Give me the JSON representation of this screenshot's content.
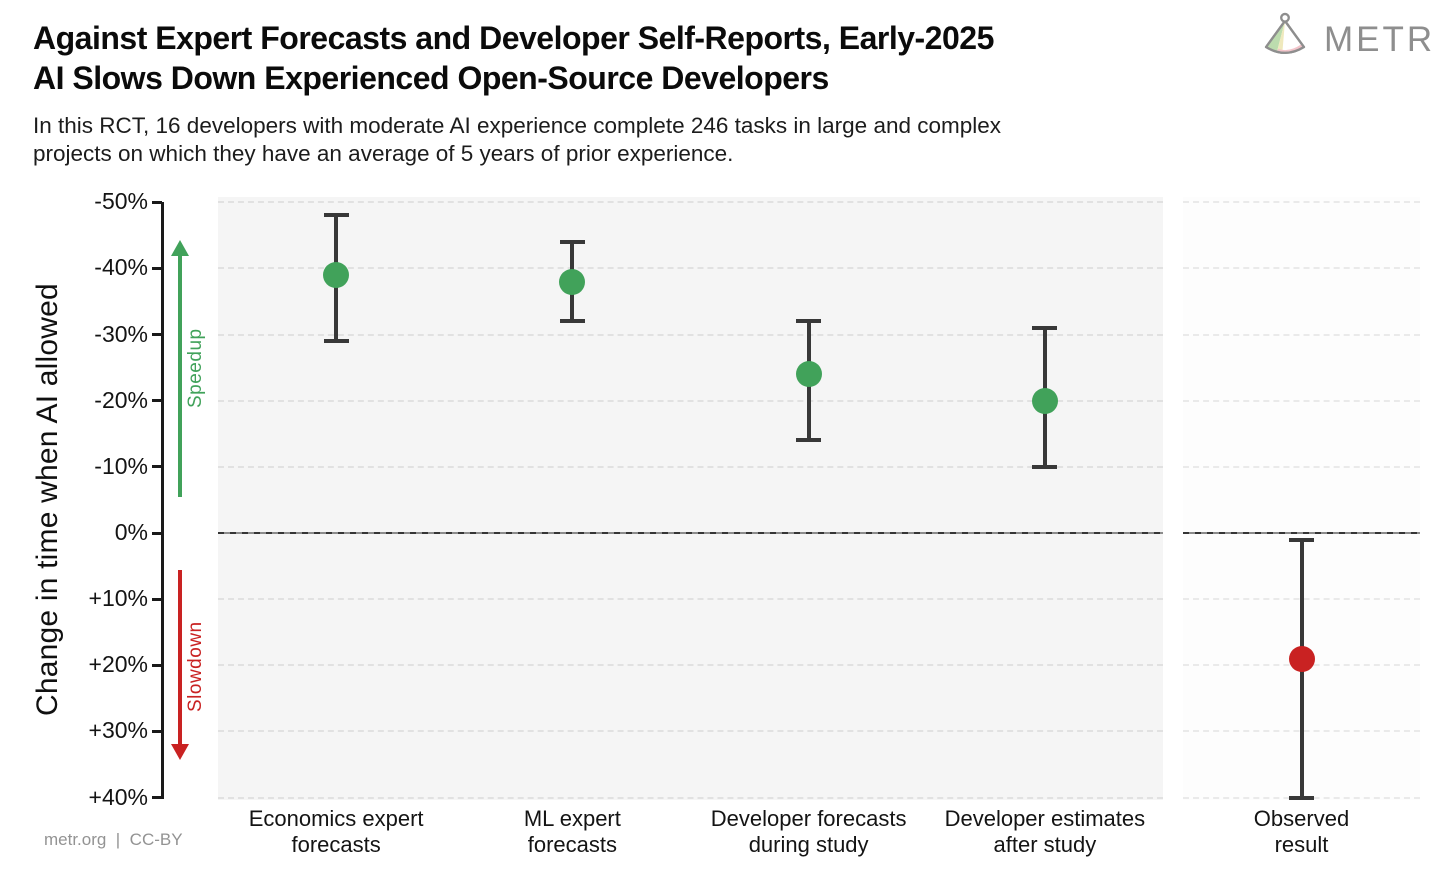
{
  "header": {
    "title_line1": "Against Expert Forecasts and Developer Self-Reports, Early-2025",
    "title_line2": "AI Slows Down Experienced Open-Source Developers",
    "subtitle_line1": "In this RCT, 16 developers with moderate AI experience complete 246 tasks in large and complex",
    "subtitle_line2": "projects on which they have an average of 5 years of prior experience.",
    "logo_text": "METR"
  },
  "footer": {
    "credit": "metr.org  |  CC-BY"
  },
  "colors": {
    "speedup_green": "#41a25a",
    "slowdown_red": "#c92222",
    "errorbar_dark": "#383838",
    "panel_bg": "#f5f5f5",
    "grid_gray": "#e1e1e1",
    "logo_gray": "#8e8e8e"
  },
  "chart_data": {
    "type": "scatter",
    "subtype": "point-estimates-with-confidence-intervals",
    "title": "Against Expert Forecasts and Developer Self-Reports, Early-2025 AI Slows Down Experienced Open-Source Developers",
    "ylabel": "Change in time when AI allowed",
    "xlabel": "",
    "units": "percent change in completion time (negative = speedup, positive = slowdown)",
    "ylim_display": [
      -50,
      40
    ],
    "grid": "dashed horizontal every 10%",
    "y_axis": {
      "tick_values": [
        -50,
        -40,
        -30,
        -20,
        -10,
        0,
        10,
        20,
        30,
        40
      ],
      "tick_labels": [
        "-50%",
        "-40%",
        "-30%",
        "-20%",
        "-10%",
        "0%",
        "+10%",
        "+20%",
        "+30%",
        "+40%"
      ],
      "speedup_label": "Speedup",
      "slowdown_label": "Slowdown"
    },
    "categories": [
      "Economics expert forecasts",
      "ML expert forecasts",
      "Developer forecasts during study",
      "Developer estimates after study",
      "Observed result"
    ],
    "points": [
      {
        "category": "Economics expert forecasts",
        "label": "Economics expert\nforecasts",
        "mean": -39,
        "ci": [
          -48,
          -29
        ],
        "color": "#41a25a",
        "panel": "main"
      },
      {
        "category": "ML expert forecasts",
        "label": "ML expert\nforecasts",
        "mean": -38,
        "ci": [
          -44,
          -32
        ],
        "color": "#41a25a",
        "panel": "main"
      },
      {
        "category": "Developer forecasts during study",
        "label": "Developer forecasts\nduring study",
        "mean": -24,
        "ci": [
          -32,
          -14
        ],
        "color": "#41a25a",
        "panel": "main"
      },
      {
        "category": "Developer estimates after study",
        "label": "Developer estimates\nafter study",
        "mean": -20,
        "ci": [
          -31,
          -10
        ],
        "color": "#41a25a",
        "panel": "main"
      },
      {
        "category": "Observed result",
        "label": "Observed\nresult",
        "mean": 19,
        "ci": [
          1,
          40
        ],
        "color": "#c92222",
        "panel": "right"
      }
    ]
  }
}
